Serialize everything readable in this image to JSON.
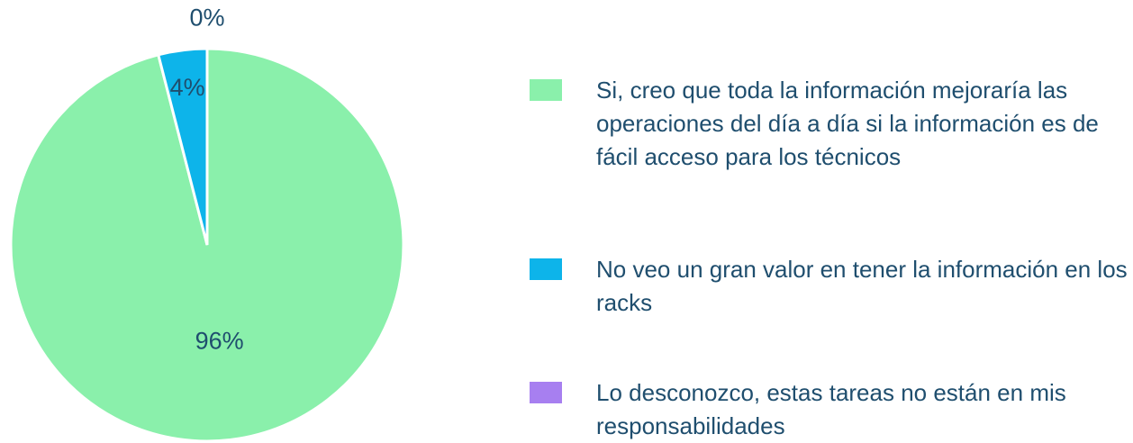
{
  "chart_data": {
    "type": "pie",
    "categories": [
      "Si, creo que toda la información mejoraría las operaciones del día a día si la información es de fácil acceso para los técnicos",
      "No veo un gran valor en tener la información en los racks",
      "Lo desconozco, estas tareas no están en mis responsabilidades"
    ],
    "values": [
      96,
      4,
      0
    ],
    "value_labels": [
      "96%",
      "4%",
      "0%"
    ],
    "colors": [
      "#8af0ab",
      "#0db4ea",
      "#a77ff0"
    ],
    "legend": "right"
  }
}
